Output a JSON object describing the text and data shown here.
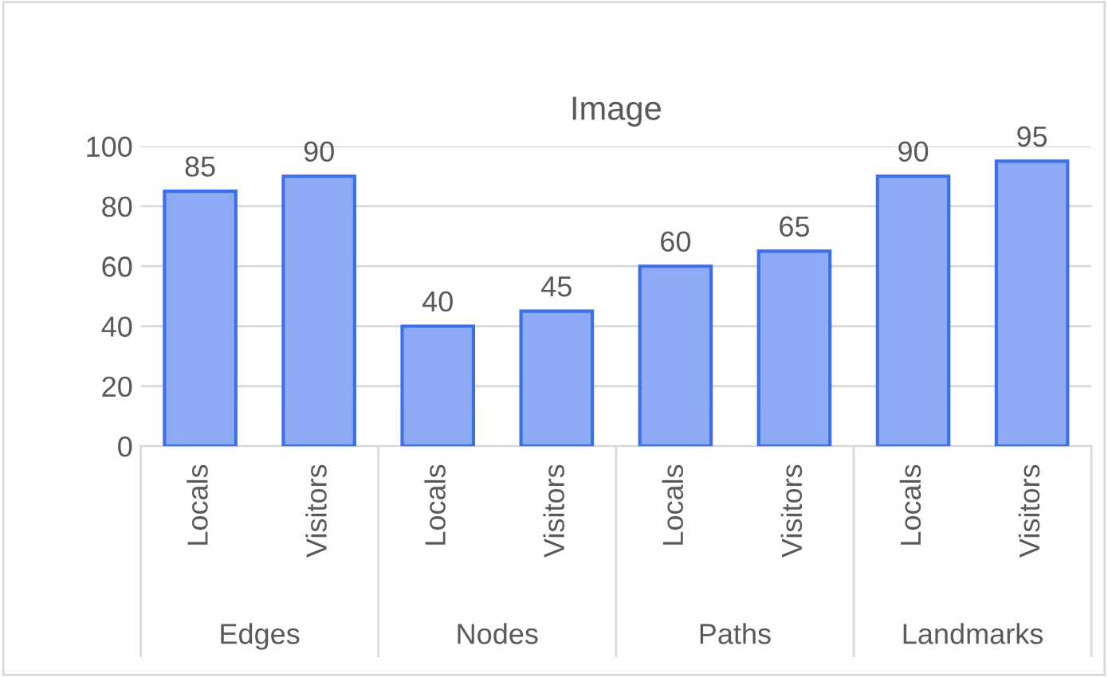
{
  "chart_data": {
    "type": "bar",
    "title": "Image",
    "categories": [
      "Locals",
      "Visitors",
      "Locals",
      "Visitors",
      "Locals",
      "Visitors",
      "Locals",
      "Visitors"
    ],
    "values": [
      85,
      90,
      40,
      45,
      60,
      65,
      90,
      95
    ],
    "color": "#8eaaf4",
    "annotations": [
      "Edges",
      "Nodes",
      "Paths",
      "Landmarks"
    ],
    "ylim": [
      0,
      100
    ],
    "yticks": [
      0,
      20,
      40,
      60,
      80,
      100
    ],
    "grid": "y",
    "data_labels": true
  }
}
